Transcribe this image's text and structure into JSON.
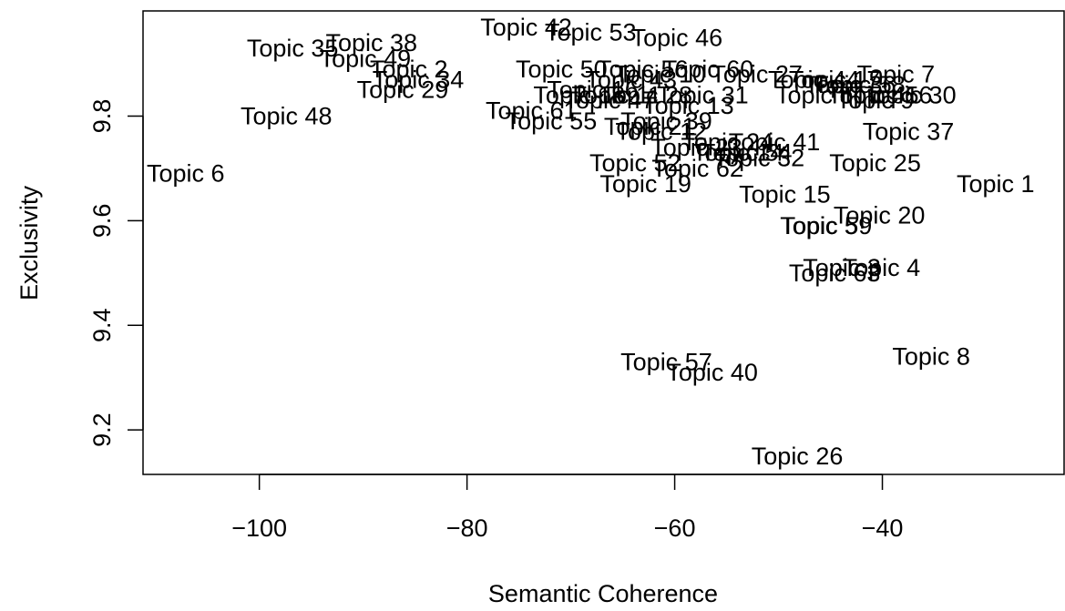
{
  "chart_data": {
    "type": "scatter",
    "title": "",
    "xlabel": "Semantic Coherence",
    "ylabel": "Exclusivity",
    "xlim": [
      -111.2,
      -22.5
    ],
    "ylim": [
      9.115,
      10.001
    ],
    "xticks": [
      -100,
      -80,
      -60,
      -40
    ],
    "xtick_labels": [
      "−100",
      "−80",
      "−60",
      "−40"
    ],
    "yticks": [
      9.2,
      9.4,
      9.6,
      9.8
    ],
    "ytick_labels": [
      "9.2",
      "9.4",
      "9.6",
      "9.8"
    ],
    "grid": false,
    "legend": "none",
    "marker": "text labels",
    "points": [
      {
        "label": "Topic 6",
        "x": -107.1,
        "y": 9.69
      },
      {
        "label": "Topic 48",
        "x": -97.4,
        "y": 9.8
      },
      {
        "label": "Topic 35",
        "x": -96.8,
        "y": 9.93
      },
      {
        "label": "Topic 38",
        "x": -89.2,
        "y": 9.94
      },
      {
        "label": "Topic 49",
        "x": -89.8,
        "y": 9.91
      },
      {
        "label": "Topic 34",
        "x": -84.7,
        "y": 9.87
      },
      {
        "label": "Topic 2",
        "x": -85.6,
        "y": 9.89
      },
      {
        "label": "Topic 29",
        "x": -86.2,
        "y": 9.85
      },
      {
        "label": "Topic 42",
        "x": -74.3,
        "y": 9.97
      },
      {
        "label": "Topic 53",
        "x": -68.1,
        "y": 9.96
      },
      {
        "label": "Topic 46",
        "x": -59.8,
        "y": 9.95
      },
      {
        "label": "Topic 50",
        "x": -70.9,
        "y": 9.89
      },
      {
        "label": "Topic 43",
        "x": -64.2,
        "y": 9.87
      },
      {
        "label": "Topic 56",
        "x": -63.1,
        "y": 9.89
      },
      {
        "label": "Topic 60",
        "x": -56.8,
        "y": 9.89
      },
      {
        "label": "Topic 10",
        "x": -61.4,
        "y": 9.88
      },
      {
        "label": "Topic 31",
        "x": -57.3,
        "y": 9.84
      },
      {
        "label": "Topic 13",
        "x": -58.7,
        "y": 9.82
      },
      {
        "label": "Topic 16",
        "x": -67.9,
        "y": 9.85
      },
      {
        "label": "Topic 18",
        "x": -69.2,
        "y": 9.84
      },
      {
        "label": "Topic 11",
        "x": -65.6,
        "y": 9.84
      },
      {
        "label": "Topic 47",
        "x": -66.3,
        "y": 9.83
      },
      {
        "label": "Topic 28",
        "x": -62.7,
        "y": 9.84
      },
      {
        "label": "Topic 61",
        "x": -73.8,
        "y": 9.81
      },
      {
        "label": "Topic 55",
        "x": -71.9,
        "y": 9.79
      },
      {
        "label": "Topic 39",
        "x": -60.8,
        "y": 9.79
      },
      {
        "label": "Topic 21",
        "x": -62.4,
        "y": 9.78
      },
      {
        "label": "Topic 12",
        "x": -61.3,
        "y": 9.77
      },
      {
        "label": "Topic 52",
        "x": -63.8,
        "y": 9.71
      },
      {
        "label": "Topic 19",
        "x": -62.8,
        "y": 9.67
      },
      {
        "label": "Topic 62",
        "x": -57.8,
        "y": 9.7
      },
      {
        "label": "Topic 23",
        "x": -57.9,
        "y": 9.74
      },
      {
        "label": "Topic 24",
        "x": -54.9,
        "y": 9.75
      },
      {
        "label": "Topic 14",
        "x": -53.9,
        "y": 9.73
      },
      {
        "label": "Topic 54",
        "x": -53.1,
        "y": 9.73
      },
      {
        "label": "Topic 41",
        "x": -50.4,
        "y": 9.75
      },
      {
        "label": "Topic 32",
        "x": -51.9,
        "y": 9.72
      },
      {
        "label": "Topic 27",
        "x": -52.1,
        "y": 9.88
      },
      {
        "label": "Topic 44",
        "x": -46.6,
        "y": 9.87
      },
      {
        "label": "Topic 17",
        "x": -44.6,
        "y": 9.87
      },
      {
        "label": "Topic 36",
        "x": -43.1,
        "y": 9.86
      },
      {
        "label": "Topic 58",
        "x": -42.2,
        "y": 9.86
      },
      {
        "label": "Topic 7",
        "x": -38.7,
        "y": 9.88
      },
      {
        "label": "Topic 51",
        "x": -45.9,
        "y": 9.84
      },
      {
        "label": "Topic 30",
        "x": -37.3,
        "y": 9.84
      },
      {
        "label": "Topic 45",
        "x": -40.9,
        "y": 9.84
      },
      {
        "label": "Topic 16b",
        "x": -39.6,
        "y": 9.84
      },
      {
        "label": "Topic 9",
        "x": -40.7,
        "y": 9.83
      },
      {
        "label": "Topic 37",
        "x": -37.5,
        "y": 9.77
      },
      {
        "label": "Topic 25",
        "x": -40.7,
        "y": 9.71
      },
      {
        "label": "Topic 1",
        "x": -29.1,
        "y": 9.67
      },
      {
        "label": "Topic 15",
        "x": -49.4,
        "y": 9.65
      },
      {
        "label": "Topic 20",
        "x": -40.3,
        "y": 9.61
      },
      {
        "label": "Topic 5",
        "x": -46.1,
        "y": 9.59
      },
      {
        "label": "Topic 59",
        "x": -45.4,
        "y": 9.59
      },
      {
        "label": "Topic 3",
        "x": -43.9,
        "y": 9.51
      },
      {
        "label": "Topic 63",
        "x": -44.6,
        "y": 9.5
      },
      {
        "label": "Topic 4",
        "x": -40.1,
        "y": 9.51
      },
      {
        "label": "Topic 8",
        "x": -35.3,
        "y": 9.34
      },
      {
        "label": "Topic 57",
        "x": -60.8,
        "y": 9.33
      },
      {
        "label": "Topic 40",
        "x": -56.4,
        "y": 9.31
      },
      {
        "label": "Topic 26",
        "x": -48.2,
        "y": 9.15
      }
    ]
  }
}
